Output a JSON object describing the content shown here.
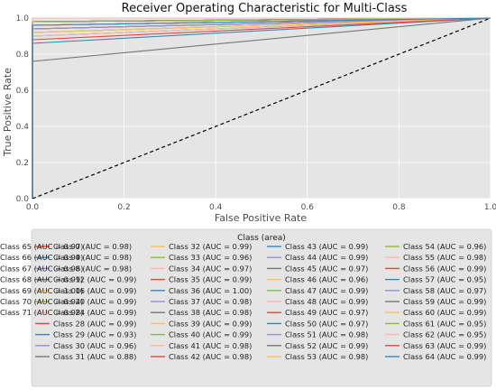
{
  "chart_data": {
    "type": "line",
    "title": "Receiver Operating Characteristic for Multi-Class",
    "xlabel": "False Positive Rate",
    "ylabel": "True Positive Rate",
    "xlim": [
      0.0,
      1.0
    ],
    "ylim": [
      0.0,
      1.0
    ],
    "xticks": [
      "0.0",
      "0.2",
      "0.4",
      "0.6",
      "0.8",
      "1.0"
    ],
    "yticks": [
      "0.0",
      "0.2",
      "0.4",
      "0.6",
      "0.8",
      "1.0"
    ],
    "grid": true,
    "legend": {
      "title": "Class (area)",
      "placement": "bottom",
      "columns": 5
    },
    "baseline": {
      "x": [
        0,
        1
      ],
      "y": [
        0,
        1
      ],
      "style": "dashed",
      "color": "#000000"
    },
    "series": [
      {
        "name": "Class 0 (AUC = 0.98)",
        "color": "#e24a33",
        "x": [
          0,
          0,
          1
        ],
        "y": [
          0,
          0.96,
          1
        ]
      },
      {
        "name": "Class 4 (AUC = 0.98)",
        "color": "#348abd",
        "x": [
          0,
          0,
          1
        ],
        "y": [
          0,
          0.96,
          1
        ]
      },
      {
        "name": "Class 8 (AUC = 0.98)",
        "color": "#988ed5",
        "x": [
          0,
          0,
          1
        ],
        "y": [
          0,
          0.96,
          1
        ]
      },
      {
        "name": "Class 12 (AUC = 0.99)",
        "color": "#777777",
        "x": [
          0,
          0,
          1
        ],
        "y": [
          0,
          0.98,
          1
        ]
      },
      {
        "name": "Class 16 (AUC = 0.99)",
        "color": "#fbc15e",
        "x": [
          0,
          0,
          1
        ],
        "y": [
          0,
          0.98,
          1
        ]
      },
      {
        "name": "Class 20 (AUC = 0.99)",
        "color": "#8eba42",
        "x": [
          0,
          0,
          1
        ],
        "y": [
          0,
          0.98,
          1
        ]
      },
      {
        "name": "Class 24 (AUC = 0.99)",
        "color": "#ffb5b8",
        "x": [
          0,
          0,
          1
        ],
        "y": [
          0,
          0.98,
          1
        ]
      },
      {
        "name": "Class 28 (AUC = 0.99)",
        "color": "#e24a33",
        "x": [
          0,
          0,
          1
        ],
        "y": [
          0,
          0.98,
          1
        ]
      },
      {
        "name": "Class 29 (AUC = 0.93)",
        "color": "#348abd",
        "x": [
          0,
          0,
          1
        ],
        "y": [
          0,
          0.86,
          1
        ]
      },
      {
        "name": "Class 30 (AUC = 0.96)",
        "color": "#988ed5",
        "x": [
          0,
          0,
          1
        ],
        "y": [
          0,
          0.92,
          1
        ]
      },
      {
        "name": "Class 31 (AUC = 0.88)",
        "color": "#777777",
        "x": [
          0,
          0,
          1
        ],
        "y": [
          0,
          0.76,
          1
        ]
      },
      {
        "name": "Class 32 (AUC = 0.99)",
        "color": "#fbc15e",
        "x": [
          0,
          0,
          1
        ],
        "y": [
          0,
          0.98,
          1
        ]
      },
      {
        "name": "Class 33 (AUC = 0.96)",
        "color": "#8eba42",
        "x": [
          0,
          0,
          1
        ],
        "y": [
          0,
          0.92,
          1
        ]
      },
      {
        "name": "Class 34 (AUC = 0.97)",
        "color": "#ffb5b8",
        "x": [
          0,
          0,
          1
        ],
        "y": [
          0,
          0.94,
          1
        ]
      },
      {
        "name": "Class 35 (AUC = 0.99)",
        "color": "#e24a33",
        "x": [
          0,
          0,
          1
        ],
        "y": [
          0,
          0.98,
          1
        ]
      },
      {
        "name": "Class 36 (AUC = 1.00)",
        "color": "#348abd",
        "x": [
          0,
          0,
          1
        ],
        "y": [
          0,
          1.0,
          1
        ]
      },
      {
        "name": "Class 37 (AUC = 0.98)",
        "color": "#988ed5",
        "x": [
          0,
          0,
          1
        ],
        "y": [
          0,
          0.96,
          1
        ]
      },
      {
        "name": "Class 38 (AUC = 0.98)",
        "color": "#777777",
        "x": [
          0,
          0,
          1
        ],
        "y": [
          0,
          0.96,
          1
        ]
      },
      {
        "name": "Class 39 (AUC = 0.99)",
        "color": "#fbc15e",
        "x": [
          0,
          0,
          1
        ],
        "y": [
          0,
          0.98,
          1
        ]
      },
      {
        "name": "Class 40 (AUC = 0.99)",
        "color": "#8eba42",
        "x": [
          0,
          0,
          1
        ],
        "y": [
          0,
          0.98,
          1
        ]
      },
      {
        "name": "Class 41 (AUC = 0.98)",
        "color": "#ffb5b8",
        "x": [
          0,
          0,
          1
        ],
        "y": [
          0,
          0.96,
          1
        ]
      },
      {
        "name": "Class 42 (AUC = 0.98)",
        "color": "#e24a33",
        "x": [
          0,
          0,
          1
        ],
        "y": [
          0,
          0.96,
          1
        ]
      },
      {
        "name": "Class 43 (AUC = 0.99)",
        "color": "#348abd",
        "x": [
          0,
          0,
          1
        ],
        "y": [
          0,
          0.98,
          1
        ]
      },
      {
        "name": "Class 44 (AUC = 0.99)",
        "color": "#988ed5",
        "x": [
          0,
          0,
          1
        ],
        "y": [
          0,
          0.98,
          1
        ]
      },
      {
        "name": "Class 45 (AUC = 0.97)",
        "color": "#777777",
        "x": [
          0,
          0,
          1
        ],
        "y": [
          0,
          0.94,
          1
        ]
      },
      {
        "name": "Class 46 (AUC = 0.96)",
        "color": "#fbc15e",
        "x": [
          0,
          0,
          1
        ],
        "y": [
          0,
          0.92,
          1
        ]
      },
      {
        "name": "Class 47 (AUC = 0.99)",
        "color": "#8eba42",
        "x": [
          0,
          0,
          1
        ],
        "y": [
          0,
          0.98,
          1
        ]
      },
      {
        "name": "Class 48 (AUC = 0.99)",
        "color": "#ffb5b8",
        "x": [
          0,
          0,
          1
        ],
        "y": [
          0,
          0.98,
          1
        ]
      },
      {
        "name": "Class 49 (AUC = 0.97)",
        "color": "#e24a33",
        "x": [
          0,
          0,
          1
        ],
        "y": [
          0,
          0.94,
          1
        ]
      },
      {
        "name": "Class 50 (AUC = 0.97)",
        "color": "#348abd",
        "x": [
          0,
          0,
          1
        ],
        "y": [
          0,
          0.94,
          1
        ]
      },
      {
        "name": "Class 51 (AUC = 0.98)",
        "color": "#988ed5",
        "x": [
          0,
          0,
          1
        ],
        "y": [
          0,
          0.96,
          1
        ]
      },
      {
        "name": "Class 52 (AUC = 0.99)",
        "color": "#777777",
        "x": [
          0,
          0,
          1
        ],
        "y": [
          0,
          0.98,
          1
        ]
      },
      {
        "name": "Class 53 (AUC = 0.98)",
        "color": "#fbc15e",
        "x": [
          0,
          0,
          1
        ],
        "y": [
          0,
          0.96,
          1
        ]
      },
      {
        "name": "Class 54 (AUC = 0.96)",
        "color": "#8eba42",
        "x": [
          0,
          0,
          1
        ],
        "y": [
          0,
          0.92,
          1
        ]
      },
      {
        "name": "Class 55 (AUC = 0.98)",
        "color": "#ffb5b8",
        "x": [
          0,
          0,
          1
        ],
        "y": [
          0,
          0.96,
          1
        ]
      },
      {
        "name": "Class 56 (AUC = 0.99)",
        "color": "#e24a33",
        "x": [
          0,
          0,
          1
        ],
        "y": [
          0,
          0.98,
          1
        ]
      },
      {
        "name": "Class 57 (AUC = 0.95)",
        "color": "#348abd",
        "x": [
          0,
          0,
          1
        ],
        "y": [
          0,
          0.9,
          1
        ]
      },
      {
        "name": "Class 58 (AUC = 0.97)",
        "color": "#988ed5",
        "x": [
          0,
          0,
          1
        ],
        "y": [
          0,
          0.94,
          1
        ]
      },
      {
        "name": "Class 59 (AUC = 0.99)",
        "color": "#777777",
        "x": [
          0,
          0,
          1
        ],
        "y": [
          0,
          0.98,
          1
        ]
      },
      {
        "name": "Class 60 (AUC = 0.99)",
        "color": "#fbc15e",
        "x": [
          0,
          0,
          1
        ],
        "y": [
          0,
          0.98,
          1
        ]
      },
      {
        "name": "Class 61 (AUC = 0.95)",
        "color": "#8eba42",
        "x": [
          0,
          0,
          1
        ],
        "y": [
          0,
          0.9,
          1
        ]
      },
      {
        "name": "Class 62 (AUC = 0.95)",
        "color": "#ffb5b8",
        "x": [
          0,
          0,
          1
        ],
        "y": [
          0,
          0.9,
          1
        ]
      },
      {
        "name": "Class 63 (AUC = 0.99)",
        "color": "#e24a33",
        "x": [
          0,
          0,
          1
        ],
        "y": [
          0,
          0.98,
          1
        ]
      },
      {
        "name": "Class 64 (AUC = 0.99)",
        "color": "#348abd",
        "x": [
          0,
          0,
          1
        ],
        "y": [
          0,
          0.98,
          1
        ]
      },
      {
        "name": "Class 65 (AUC = 0.97)",
        "color": "#988ed5",
        "x": [
          0,
          0,
          1
        ],
        "y": [
          0,
          0.94,
          1
        ]
      },
      {
        "name": "Class 66 (AUC = 0.99)",
        "color": "#777777",
        "x": [
          0,
          0,
          1
        ],
        "y": [
          0,
          0.98,
          1
        ]
      },
      {
        "name": "Class 67 (AUC = 0.96)",
        "color": "#fbc15e",
        "x": [
          0,
          0,
          1
        ],
        "y": [
          0,
          0.92,
          1
        ]
      },
      {
        "name": "Class 68 (AUC = 0.99)",
        "color": "#8eba42",
        "x": [
          0,
          0,
          1
        ],
        "y": [
          0,
          0.98,
          1
        ]
      },
      {
        "name": "Class 69 (AUC = 1.00)",
        "color": "#ffb5b8",
        "x": [
          0,
          0,
          1
        ],
        "y": [
          0,
          1.0,
          1
        ]
      },
      {
        "name": "Class 70 (AUC = 0.94)",
        "color": "#e24a33",
        "x": [
          0,
          0,
          1
        ],
        "y": [
          0,
          0.88,
          1
        ]
      },
      {
        "name": "Class 71 (AUC = 0.98)",
        "color": "#348abd",
        "x": [
          0,
          0,
          1
        ],
        "y": [
          0,
          0.96,
          1
        ]
      }
    ]
  }
}
